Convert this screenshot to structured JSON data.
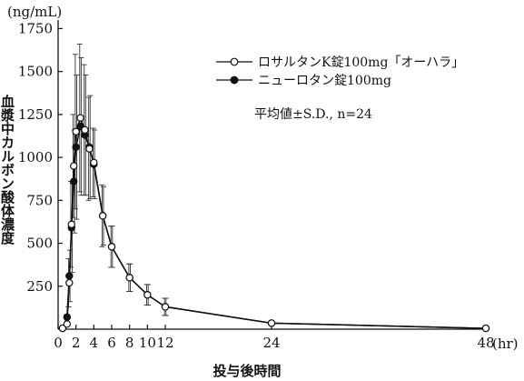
{
  "chart_data": {
    "type": "line",
    "ylabel": "血漿中カルボン酸体濃度",
    "y_unit": "(ng/mL)",
    "xlabel": "投与後時間",
    "x_unit": "(hr)",
    "annotation": "平均値±S.D., n=24",
    "xlim": [
      0,
      48
    ],
    "ylim": [
      0,
      1800
    ],
    "x_ticks": [
      0,
      2,
      4,
      6,
      8,
      10,
      12,
      24,
      48
    ],
    "x_tick_labels": [
      "0",
      "2",
      "4",
      "6",
      "8",
      "10",
      "12",
      "24",
      "48"
    ],
    "y_ticks": [
      250,
      500,
      750,
      1000,
      1250,
      1500,
      1750
    ],
    "y_tick_labels": [
      "250",
      "500",
      "750",
      "1000",
      "1250",
      "1500",
      "1750"
    ],
    "grid": false,
    "legend_position": "top-right",
    "series": [
      {
        "name": "ロサルタンK錠100mg「オーハラ」",
        "marker": "open-circle",
        "x": [
          0.5,
          1.0,
          1.25,
          1.5,
          1.75,
          2.0,
          2.5,
          3.0,
          3.5,
          4.0,
          5.0,
          6.0,
          8.0,
          10.0,
          12.0,
          24.0,
          48.0
        ],
        "values": [
          5,
          30,
          270,
          610,
          950,
          1150,
          1230,
          1160,
          1050,
          970,
          660,
          480,
          300,
          200,
          130,
          35,
          5
        ],
        "sd": [
          0,
          0,
          140,
          250,
          300,
          450,
          430,
          380,
          300,
          200,
          180,
          120,
          80,
          60,
          50,
          0,
          0
        ]
      },
      {
        "name": "ニューロタン錠100mg",
        "marker": "filled-circle",
        "x": [
          0.5,
          1.0,
          1.25,
          1.5,
          1.75,
          2.0,
          2.5,
          3.0,
          3.5,
          4.0,
          5.0,
          6.0,
          8.0,
          10.0,
          12.0,
          24.0,
          48.0
        ],
        "values": [
          5,
          70,
          310,
          590,
          860,
          1060,
          1180,
          1130,
          1060,
          960,
          660,
          480,
          300,
          200,
          130,
          35,
          5
        ],
        "sd": [
          0,
          0,
          150,
          260,
          300,
          420,
          400,
          350,
          300,
          200,
          170,
          120,
          80,
          60,
          50,
          0,
          0
        ]
      }
    ]
  }
}
